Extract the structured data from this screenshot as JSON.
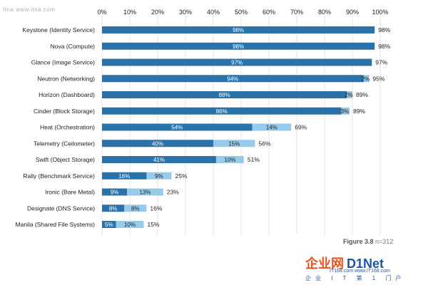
{
  "watermark_url": "Itna   www.itna.com",
  "figure_label": "Figure 3.8",
  "sample_size": "n=312",
  "logo": {
    "main_text": "企业网",
    "brand": "D1Net",
    "sub_text": "IT168.com  www.IT168.com",
    "bottom_text": "企业 I T 第 1 门户"
  },
  "colors": {
    "primary_segment": "#2b72a8",
    "secondary_segment": "#98cbe9",
    "gridline": "#d9d9d9",
    "text": "#222222"
  },
  "chart_data": {
    "type": "bar",
    "orientation": "horizontal",
    "stacked": true,
    "title": "",
    "xlabel": "",
    "ylabel": "",
    "xlim": [
      0,
      100
    ],
    "x_ticks": [
      "0%",
      "10%",
      "20%",
      "30%",
      "40%",
      "50%",
      "60%",
      "70%",
      "80%",
      "90%",
      "100%"
    ],
    "grid": true,
    "legend": "none",
    "categories": [
      "Keystone (Identity Service)",
      "Nova (Compute)",
      "Glance (Image Service)",
      "Neutron (Networking)",
      "Horizon (Dashboard)",
      "Cinder (Block Storage)",
      "Heat (Orchestration)",
      "Telemetry (Ceilometer)",
      "Swift (Object Storage)",
      "Rally (Benchmark Service)",
      "Ironic (Bare Metal)",
      "Designate (DNS Service)",
      "Manila (Shared File Systems)"
    ],
    "series": [
      {
        "values": [
          98,
          98,
          97,
          94,
          88,
          86,
          54,
          40,
          41,
          16,
          9,
          8,
          5
        ],
        "labels": [
          "98%",
          "98%",
          "97%",
          "94%",
          "88%",
          "86%",
          "54%",
          "40%",
          "41%",
          "16%",
          "9%",
          "8%",
          "5%"
        ]
      },
      {
        "values": [
          0,
          0,
          0,
          2,
          2,
          3,
          14,
          15,
          10,
          9,
          13,
          8,
          10
        ],
        "labels": [
          "",
          "",
          "",
          "2%",
          "2%",
          "3%",
          "14%",
          "15%",
          "10%",
          "9%",
          "13%",
          "8%",
          "10%"
        ]
      }
    ],
    "totals": [
      "98%",
      "98%",
      "97%",
      "95%",
      "89%",
      "89%",
      "69%",
      "56%",
      "51%",
      "25%",
      "23%",
      "16%",
      "15%"
    ]
  }
}
